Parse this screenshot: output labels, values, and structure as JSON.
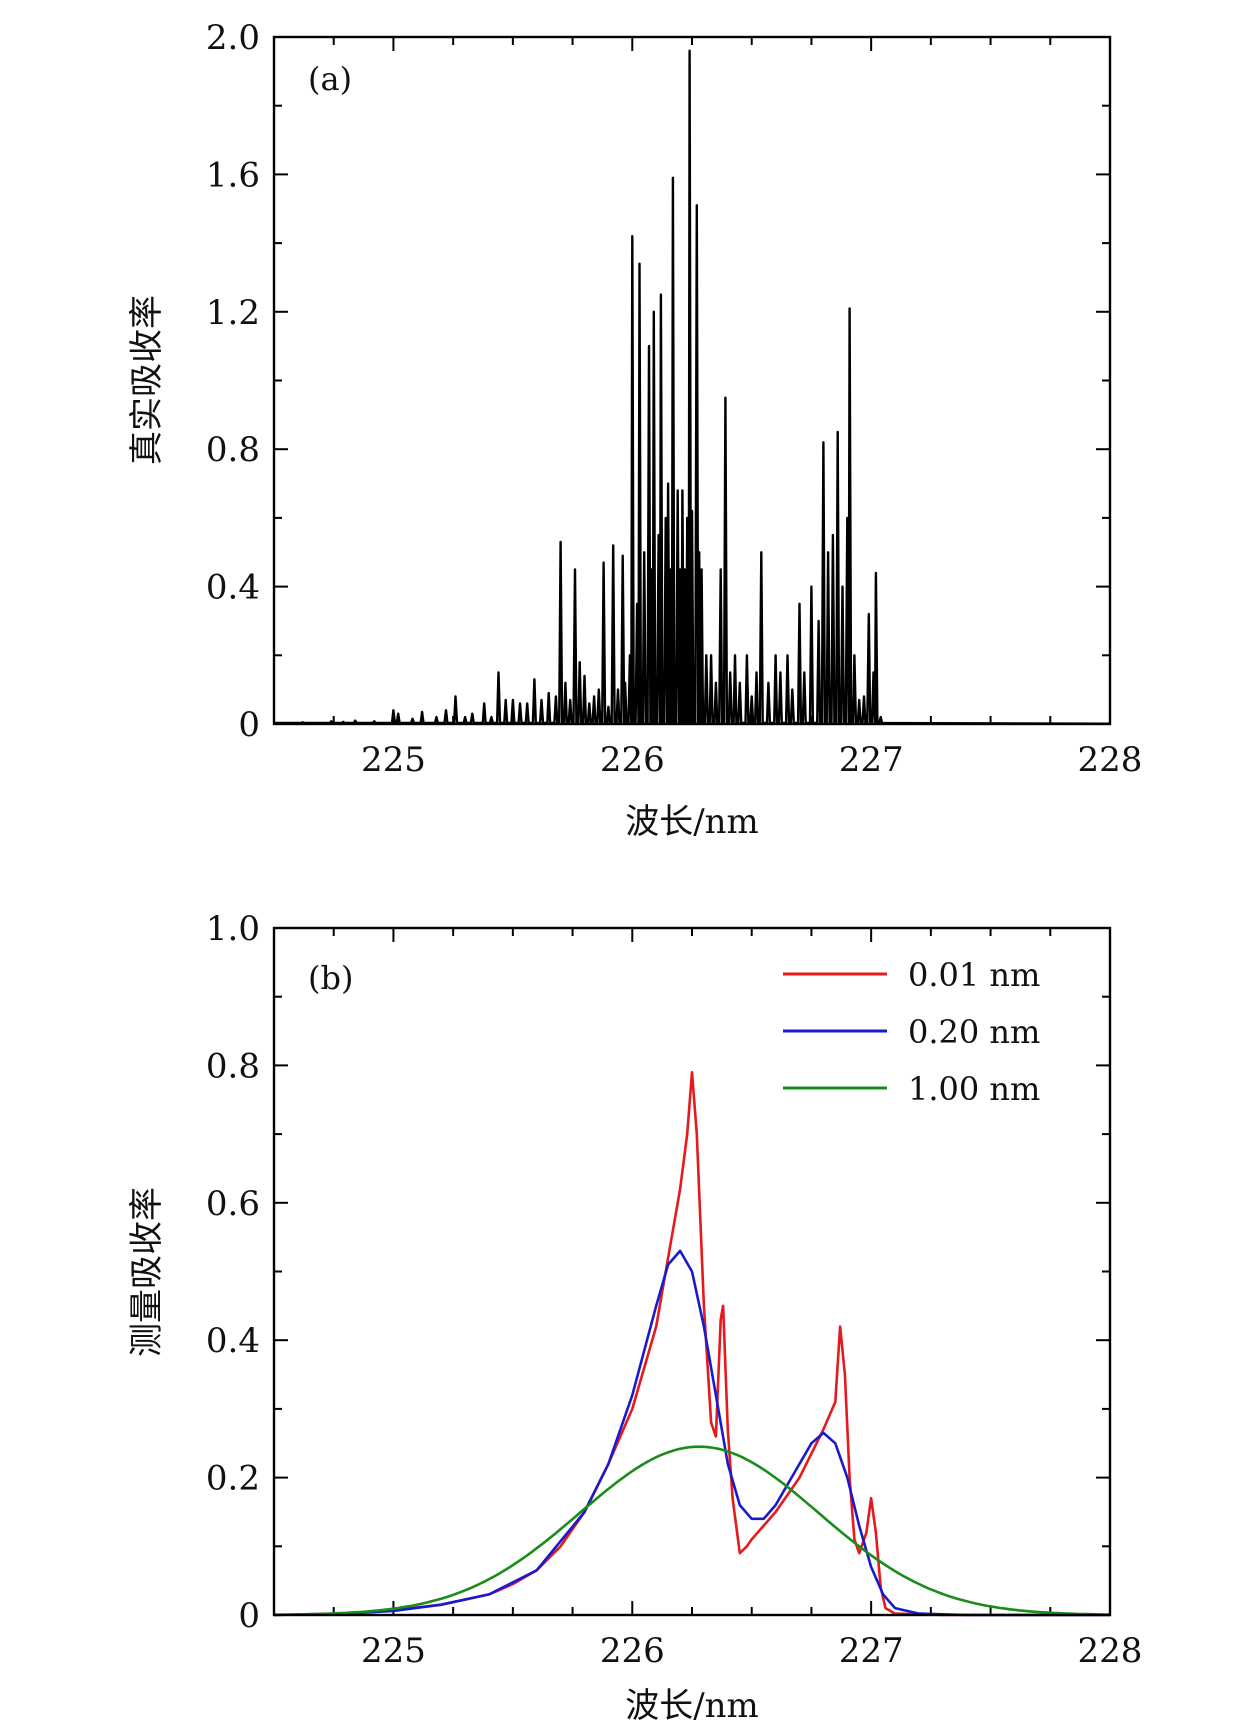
{
  "figure": {
    "panel_a": {
      "panel_label": "(a)",
      "xlabel": "波长/nm",
      "ylabel": "真实吸收率"
    },
    "panel_b": {
      "panel_label": "(b)",
      "xlabel": "波长/nm",
      "ylabel": "测量吸收率"
    }
  },
  "chart_data": [
    {
      "id": "panel_a",
      "type": "line",
      "title": "(a)",
      "xlabel": "波长/nm",
      "ylabel": "真实吸收率",
      "xlim": [
        224.5,
        228
      ],
      "ylim": [
        0,
        2.0
      ],
      "xticks": [
        225,
        226,
        227,
        228
      ],
      "xtick_labels": [
        "225",
        "226",
        "227",
        "228"
      ],
      "yticks": [
        0,
        0.4,
        0.8,
        1.2,
        1.6,
        2.0
      ],
      "ytick_labels": [
        "0",
        "0.4",
        "0.8",
        "1.2",
        "1.6",
        "2.0"
      ],
      "color": "#000000",
      "series": [
        {
          "name": "真实吸收率",
          "peaks": [
            [
              224.62,
              0.005
            ],
            [
              224.74,
              0.008
            ],
            [
              224.79,
              0.006
            ],
            [
              224.84,
              0.01
            ],
            [
              224.92,
              0.008
            ],
            [
              225.0,
              0.04
            ],
            [
              225.02,
              0.03
            ],
            [
              225.08,
              0.015
            ],
            [
              225.12,
              0.035
            ],
            [
              225.18,
              0.02
            ],
            [
              225.22,
              0.04
            ],
            [
              225.26,
              0.08
            ],
            [
              225.3,
              0.02
            ],
            [
              225.33,
              0.03
            ],
            [
              225.38,
              0.06
            ],
            [
              225.41,
              0.02
            ],
            [
              225.44,
              0.15
            ],
            [
              225.47,
              0.07
            ],
            [
              225.5,
              0.07
            ],
            [
              225.53,
              0.06
            ],
            [
              225.56,
              0.06
            ],
            [
              225.59,
              0.13
            ],
            [
              225.62,
              0.07
            ],
            [
              225.65,
              0.09
            ],
            [
              225.68,
              0.08
            ],
            [
              225.7,
              0.53
            ],
            [
              225.72,
              0.12
            ],
            [
              225.74,
              0.07
            ],
            [
              225.76,
              0.45
            ],
            [
              225.78,
              0.18
            ],
            [
              225.8,
              0.14
            ],
            [
              225.82,
              0.06
            ],
            [
              225.84,
              0.08
            ],
            [
              225.86,
              0.1
            ],
            [
              225.88,
              0.47
            ],
            [
              225.9,
              0.05
            ],
            [
              225.92,
              0.52
            ],
            [
              225.94,
              0.1
            ],
            [
              225.96,
              0.49
            ],
            [
              225.97,
              0.12
            ],
            [
              225.99,
              0.2
            ],
            [
              226.0,
              1.42
            ],
            [
              226.02,
              0.35
            ],
            [
              226.03,
              1.34
            ],
            [
              226.05,
              0.5
            ],
            [
              226.07,
              1.1
            ],
            [
              226.08,
              0.45
            ],
            [
              226.09,
              1.2
            ],
            [
              226.11,
              0.55
            ],
            [
              226.12,
              1.25
            ],
            [
              226.14,
              0.6
            ],
            [
              226.15,
              0.7
            ],
            [
              226.16,
              0.45
            ],
            [
              226.17,
              1.59
            ],
            [
              226.19,
              0.68
            ],
            [
              226.2,
              0.45
            ],
            [
              226.21,
              0.68
            ],
            [
              226.22,
              0.45
            ],
            [
              226.23,
              0.6
            ],
            [
              226.24,
              1.96
            ],
            [
              226.25,
              0.62
            ],
            [
              226.27,
              1.51
            ],
            [
              226.28,
              0.5
            ],
            [
              226.29,
              0.45
            ],
            [
              226.31,
              0.2
            ],
            [
              226.33,
              0.2
            ],
            [
              226.35,
              0.12
            ],
            [
              226.37,
              0.45
            ],
            [
              226.39,
              0.95
            ],
            [
              226.41,
              0.15
            ],
            [
              226.43,
              0.2
            ],
            [
              226.45,
              0.12
            ],
            [
              226.48,
              0.2
            ],
            [
              226.5,
              0.08
            ],
            [
              226.52,
              0.15
            ],
            [
              226.54,
              0.5
            ],
            [
              226.57,
              0.12
            ],
            [
              226.6,
              0.2
            ],
            [
              226.62,
              0.15
            ],
            [
              226.65,
              0.2
            ],
            [
              226.67,
              0.1
            ],
            [
              226.7,
              0.35
            ],
            [
              226.72,
              0.15
            ],
            [
              226.75,
              0.4
            ],
            [
              226.78,
              0.3
            ],
            [
              226.8,
              0.82
            ],
            [
              226.82,
              0.5
            ],
            [
              226.84,
              0.55
            ],
            [
              226.86,
              0.85
            ],
            [
              226.88,
              0.4
            ],
            [
              226.9,
              0.6
            ],
            [
              226.91,
              1.21
            ],
            [
              226.93,
              0.2
            ],
            [
              226.95,
              0.07
            ],
            [
              226.97,
              0.08
            ],
            [
              226.99,
              0.32
            ],
            [
              227.01,
              0.15
            ],
            [
              227.02,
              0.44
            ],
            [
              227.04,
              0.02
            ]
          ]
        }
      ]
    },
    {
      "id": "panel_b",
      "type": "line",
      "title": "(b)",
      "xlabel": "波长/nm",
      "ylabel": "测量吸收率",
      "xlim": [
        224.5,
        228
      ],
      "ylim": [
        0,
        1.0
      ],
      "xticks": [
        225,
        226,
        227,
        228
      ],
      "xtick_labels": [
        "225",
        "226",
        "227",
        "228"
      ],
      "yticks": [
        0,
        0.2,
        0.4,
        0.6,
        0.8,
        1.0
      ],
      "ytick_labels": [
        "0",
        "0.2",
        "0.4",
        "0.6",
        "0.8",
        "1.0"
      ],
      "legend_position": "top-right",
      "series": [
        {
          "name": "0.01 nm",
          "color": "#e41a1c",
          "x": [
            224.5,
            224.8,
            225.0,
            225.2,
            225.4,
            225.5,
            225.6,
            225.7,
            225.8,
            225.9,
            226.0,
            226.1,
            226.15,
            226.2,
            226.23,
            226.25,
            226.27,
            226.3,
            226.33,
            226.35,
            226.37,
            226.38,
            226.4,
            226.42,
            226.45,
            226.48,
            226.5,
            226.6,
            226.7,
            226.8,
            226.85,
            226.87,
            226.89,
            226.91,
            226.93,
            226.95,
            226.98,
            227.0,
            227.02,
            227.04,
            227.06,
            227.1,
            227.3,
            227.6,
            228.0
          ],
          "y": [
            0.0,
            0.002,
            0.007,
            0.015,
            0.03,
            0.045,
            0.065,
            0.1,
            0.15,
            0.22,
            0.3,
            0.42,
            0.52,
            0.62,
            0.7,
            0.79,
            0.7,
            0.45,
            0.28,
            0.26,
            0.43,
            0.45,
            0.27,
            0.17,
            0.09,
            0.1,
            0.11,
            0.15,
            0.2,
            0.27,
            0.31,
            0.42,
            0.35,
            0.2,
            0.11,
            0.09,
            0.12,
            0.17,
            0.12,
            0.04,
            0.01,
            0.002,
            0.0,
            0.0,
            0.0
          ]
        },
        {
          "name": "0.20 nm",
          "color": "#1a1acd",
          "x": [
            224.5,
            224.8,
            225.0,
            225.2,
            225.4,
            225.6,
            225.8,
            225.9,
            226.0,
            226.1,
            226.15,
            226.2,
            226.25,
            226.3,
            226.35,
            226.4,
            226.45,
            226.5,
            226.55,
            226.6,
            226.7,
            226.75,
            226.8,
            226.85,
            226.9,
            226.95,
            227.0,
            227.05,
            227.1,
            227.2,
            227.4,
            227.8,
            228.0
          ],
          "y": [
            0.0,
            0.002,
            0.006,
            0.015,
            0.03,
            0.065,
            0.15,
            0.22,
            0.32,
            0.45,
            0.51,
            0.53,
            0.5,
            0.42,
            0.32,
            0.22,
            0.16,
            0.14,
            0.14,
            0.16,
            0.22,
            0.25,
            0.265,
            0.25,
            0.2,
            0.13,
            0.07,
            0.03,
            0.01,
            0.002,
            0.0,
            0.0,
            0.0
          ]
        },
        {
          "name": "1.00 nm",
          "color": "#1a8c1a",
          "gaussian": {
            "center": 226.28,
            "peak": 0.245,
            "sigma": 0.5,
            "range": [
              224.5,
              228.0
            ]
          }
        }
      ]
    }
  ]
}
